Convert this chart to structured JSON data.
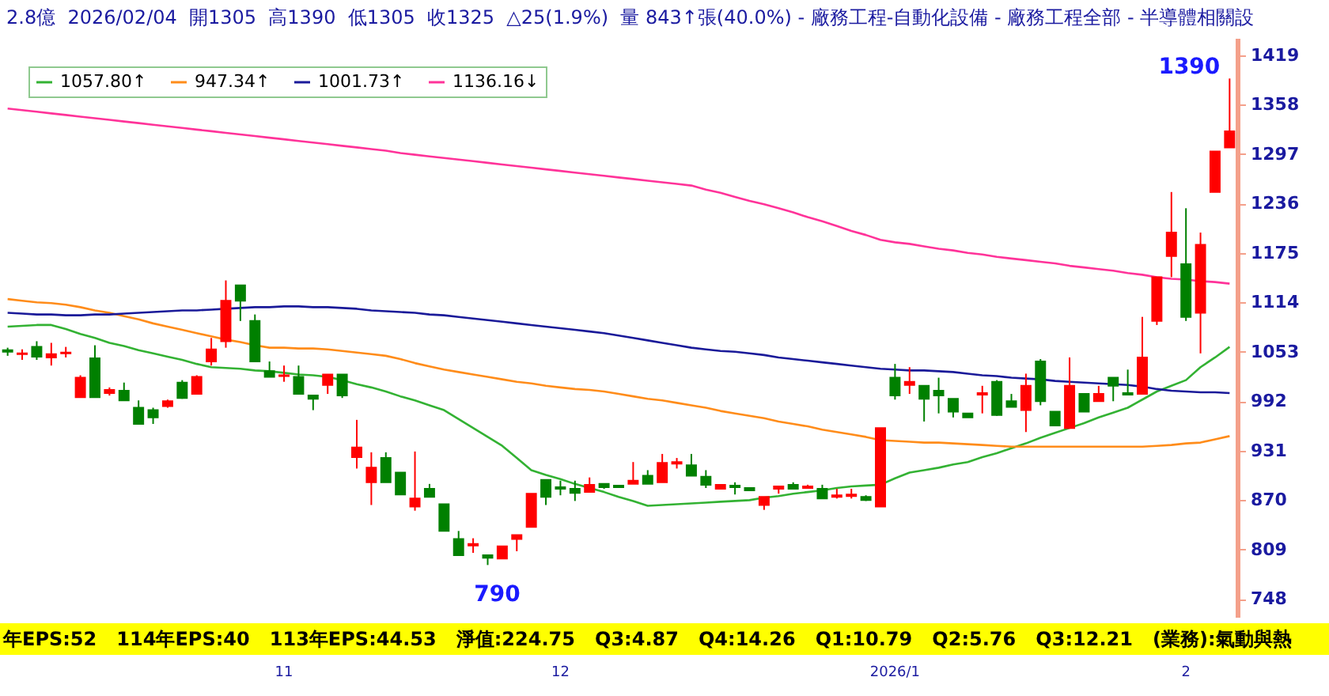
{
  "chart_data": {
    "type": "candlestick",
    "title": "2.8億  2026/02/04  開1305  高1390  低1305  收1325  △25(1.9%)  量 843↑張(40.0%) - 廠務工程-自動化設備 - 廠務工程全部 - 半導體相關設",
    "categories": [
      null,
      null,
      null,
      null,
      null,
      null,
      null,
      null,
      null,
      null,
      null,
      null,
      null,
      null,
      null,
      null,
      null,
      null,
      null,
      "11",
      null,
      null,
      null,
      null,
      null,
      null,
      null,
      null,
      null,
      null,
      null,
      null,
      null,
      null,
      null,
      null,
      null,
      null,
      "12",
      null,
      null,
      null,
      null,
      null,
      null,
      null,
      null,
      null,
      null,
      null,
      null,
      null,
      null,
      null,
      null,
      null,
      null,
      null,
      null,
      null,
      null,
      "2026/1",
      null,
      null,
      null,
      null,
      null,
      null,
      null,
      null,
      null,
      null,
      null,
      null,
      null,
      null,
      null,
      null,
      null,
      null,
      null,
      "2",
      null,
      null,
      null
    ],
    "ohlc": [
      [
        1055,
        1058,
        1048,
        1053
      ],
      [
        1050,
        1056,
        1043,
        1051
      ],
      [
        1059,
        1066,
        1043,
        1047
      ],
      [
        1046,
        1064,
        1036,
        1050
      ],
      [
        1051,
        1059,
        1046,
        1052
      ],
      [
        997,
        1024,
        997,
        1021
      ],
      [
        1045,
        1061,
        997,
        997
      ],
      [
        1002,
        1009,
        999,
        1006
      ],
      [
        1005,
        1015,
        993,
        993
      ],
      [
        984,
        993,
        964,
        964
      ],
      [
        981,
        984,
        964,
        972
      ],
      [
        986,
        994,
        984,
        992
      ],
      [
        1015,
        1018,
        995,
        996
      ],
      [
        1001,
        1024,
        1001,
        1022
      ],
      [
        1041,
        1070,
        1036,
        1056
      ],
      [
        1066,
        1141,
        1058,
        1116
      ],
      [
        1135,
        1135,
        1091,
        1116
      ],
      [
        1091,
        1099,
        1041,
        1041
      ],
      [
        1029,
        1041,
        1022,
        1022
      ],
      [
        1023,
        1036,
        1016,
        1024
      ],
      [
        1022,
        1036,
        1001,
        1001
      ],
      [
        999,
        999,
        981,
        995
      ],
      [
        1012,
        1025,
        1001,
        1025
      ],
      [
        1025,
        1025,
        996,
        999
      ],
      [
        923,
        969,
        909,
        935
      ],
      [
        892,
        929,
        864,
        910
      ],
      [
        922,
        929,
        892,
        892
      ],
      [
        904,
        904,
        877,
        877
      ],
      [
        862,
        930,
        857,
        872
      ],
      [
        884,
        890,
        874,
        874
      ],
      [
        865,
        865,
        832,
        832
      ],
      [
        822,
        832,
        802,
        802
      ],
      [
        814,
        823,
        805,
        816
      ],
      [
        802,
        803,
        790,
        799
      ],
      [
        798,
        813,
        798,
        813
      ],
      [
        822,
        827,
        807,
        827
      ],
      [
        837,
        878,
        837,
        878
      ],
      [
        895,
        895,
        864,
        874
      ],
      [
        886,
        894,
        876,
        884
      ],
      [
        884,
        894,
        869,
        879
      ],
      [
        880,
        898,
        880,
        889
      ],
      [
        890,
        890,
        884,
        886
      ],
      [
        888,
        888,
        886,
        886
      ],
      [
        890,
        917,
        890,
        894
      ],
      [
        900,
        907,
        890,
        890
      ],
      [
        892,
        927,
        892,
        916
      ],
      [
        915,
        922,
        909,
        917
      ],
      [
        913,
        927,
        900,
        900
      ],
      [
        899,
        907,
        885,
        889
      ],
      [
        884,
        889,
        884,
        889
      ],
      [
        888,
        892,
        877,
        886
      ],
      [
        885,
        885,
        882,
        882
      ],
      [
        864,
        874,
        858,
        874
      ],
      [
        884,
        887,
        878,
        887
      ],
      [
        889,
        892,
        884,
        884
      ],
      [
        885,
        889,
        884,
        887
      ],
      [
        884,
        889,
        872,
        872
      ],
      [
        874,
        884,
        872,
        876
      ],
      [
        875,
        884,
        872,
        877
      ],
      [
        874,
        876,
        869,
        870
      ],
      [
        862,
        959,
        862,
        959
      ],
      [
        1021,
        1038,
        994,
        999
      ],
      [
        1012,
        1034,
        1001,
        1016
      ],
      [
        1011,
        1011,
        967,
        995
      ],
      [
        1005,
        1021,
        977,
        999
      ],
      [
        995,
        995,
        972,
        979
      ],
      [
        977,
        977,
        972,
        972
      ],
      [
        1000,
        1011,
        977,
        1002
      ],
      [
        1016,
        1018,
        974,
        975
      ],
      [
        992,
        1001,
        985,
        985
      ],
      [
        981,
        1026,
        954,
        1011
      ],
      [
        1041,
        1044,
        987,
        992
      ],
      [
        979,
        979,
        962,
        962
      ],
      [
        959,
        1046,
        959,
        1011
      ],
      [
        1001,
        1001,
        979,
        979
      ],
      [
        992,
        1011,
        992,
        1001
      ],
      [
        1021,
        1021,
        992,
        1011
      ],
      [
        1002,
        1031,
        1000,
        1000
      ],
      [
        1001,
        1096,
        1001,
        1046
      ],
      [
        1091,
        1145,
        1086,
        1145
      ],
      [
        1171,
        1250,
        1145,
        1200
      ],
      [
        1161,
        1230,
        1091,
        1096
      ],
      [
        1101,
        1200,
        1051,
        1185
      ],
      [
        1250,
        1300,
        1250,
        1300
      ],
      [
        1305,
        1390,
        1305,
        1325
      ]
    ],
    "colors": [
      "#008000",
      "#ff0000",
      "#008000",
      "#ff0000",
      "#ff0000",
      "#ff0000",
      "#008000",
      "#ff0000",
      "#008000",
      "#008000",
      "#008000",
      "#ff0000",
      "#008000",
      "#ff0000",
      "#ff0000",
      "#ff0000",
      "#008000",
      "#008000",
      "#008000",
      "#ff0000",
      "#008000",
      "#008000",
      "#ff0000",
      "#008000",
      "#ff0000",
      "#ff0000",
      "#008000",
      "#008000",
      "#ff0000",
      "#008000",
      "#008000",
      "#008000",
      "#ff0000",
      "#008000",
      "#ff0000",
      "#ff0000",
      "#ff0000",
      "#008000",
      "#008000",
      "#008000",
      "#ff0000",
      "#008000",
      "#008000",
      "#ff0000",
      "#008000",
      "#ff0000",
      "#ff0000",
      "#008000",
      "#008000",
      "#ff0000",
      "#008000",
      "#008000",
      "#ff0000",
      "#ff0000",
      "#008000",
      "#ff0000",
      "#008000",
      "#ff0000",
      "#ff0000",
      "#008000",
      "#ff0000",
      "#008000",
      "#ff0000",
      "#008000",
      "#008000",
      "#008000",
      "#008000",
      "#ff0000",
      "#008000",
      "#008000",
      "#ff0000",
      "#008000",
      "#008000",
      "#ff0000",
      "#008000",
      "#ff0000",
      "#008000",
      "#008000",
      "#ff0000",
      "#ff0000",
      "#ff0000",
      "#008000",
      "#ff0000",
      "#ff0000",
      "#ff0000"
    ],
    "series": [
      {
        "type": "line",
        "name": "1057.80↑",
        "color": "#33b233",
        "values": [
          1084,
          1085,
          1086,
          1086,
          1081,
          1075,
          1070,
          1064,
          1060,
          1055,
          1051,
          1047,
          1043,
          1038,
          1034,
          1033,
          1032,
          1030,
          1029,
          1027,
          1025,
          1024,
          1022,
          1018,
          1013,
          1009,
          1004,
          998,
          993,
          987,
          981,
          970,
          959,
          948,
          937,
          922,
          907,
          901,
          896,
          890,
          885,
          880,
          874,
          869,
          863,
          864,
          865,
          866,
          867,
          868,
          869,
          870,
          873,
          875,
          878,
          880,
          882,
          885,
          887,
          888,
          889,
          897,
          904,
          907,
          910,
          914,
          917,
          923,
          928,
          934,
          940,
          947,
          953,
          959,
          965,
          972,
          978,
          984,
          994,
          1004,
          1011,
          1018,
          1034,
          1046,
          1059
        ]
      },
      {
        "type": "line",
        "name": "947.34↑",
        "color": "#ff8c1a",
        "values": [
          1118,
          1116,
          1114,
          1113,
          1111,
          1108,
          1104,
          1101,
          1097,
          1093,
          1088,
          1084,
          1080,
          1076,
          1072,
          1068,
          1065,
          1061,
          1058,
          1058,
          1057,
          1057,
          1056,
          1054,
          1052,
          1050,
          1048,
          1044,
          1039,
          1035,
          1031,
          1028,
          1025,
          1022,
          1019,
          1016,
          1014,
          1011,
          1009,
          1007,
          1006,
          1004,
          1001,
          998,
          995,
          993,
          990,
          987,
          984,
          980,
          977,
          974,
          971,
          967,
          964,
          961,
          957,
          954,
          951,
          948,
          944,
          943,
          942,
          941,
          941,
          940,
          939,
          938,
          937,
          936,
          936,
          936,
          936,
          936,
          936,
          936,
          936,
          936,
          936,
          937,
          938,
          940,
          941,
          945,
          949
        ]
      },
      {
        "type": "line",
        "name": "1001.73↑",
        "color": "#1a1a99",
        "values": [
          1101,
          1100,
          1099,
          1099,
          1098,
          1098,
          1099,
          1099,
          1100,
          1101,
          1102,
          1103,
          1104,
          1104,
          1105,
          1106,
          1107,
          1108,
          1108,
          1109,
          1109,
          1108,
          1108,
          1107,
          1106,
          1104,
          1103,
          1102,
          1101,
          1099,
          1098,
          1096,
          1094,
          1092,
          1090,
          1088,
          1086,
          1084,
          1082,
          1080,
          1078,
          1076,
          1073,
          1070,
          1067,
          1064,
          1061,
          1058,
          1056,
          1054,
          1053,
          1051,
          1049,
          1046,
          1044,
          1042,
          1040,
          1038,
          1036,
          1034,
          1032,
          1031,
          1030,
          1030,
          1029,
          1028,
          1026,
          1024,
          1023,
          1021,
          1020,
          1019,
          1017,
          1016,
          1015,
          1014,
          1013,
          1012,
          1010,
          1007,
          1005,
          1004,
          1003,
          1003,
          1002
        ]
      },
      {
        "type": "line",
        "name": "1136.16↓",
        "color": "#ff3399",
        "values": [
          1353,
          1351,
          1349,
          1347,
          1345,
          1343,
          1341,
          1339,
          1337,
          1335,
          1333,
          1331,
          1329,
          1327,
          1325,
          1323,
          1321,
          1319,
          1317,
          1315,
          1313,
          1311,
          1309,
          1307,
          1305,
          1303,
          1301,
          1298,
          1296,
          1294,
          1292,
          1290,
          1288,
          1286,
          1284,
          1282,
          1280,
          1278,
          1276,
          1274,
          1272,
          1270,
          1268,
          1266,
          1264,
          1262,
          1260,
          1258,
          1253,
          1249,
          1244,
          1239,
          1235,
          1230,
          1225,
          1219,
          1214,
          1208,
          1202,
          1197,
          1191,
          1188,
          1186,
          1183,
          1180,
          1178,
          1175,
          1173,
          1170,
          1168,
          1166,
          1164,
          1162,
          1159,
          1157,
          1155,
          1153,
          1150,
          1148,
          1145,
          1143,
          1142,
          1140,
          1139,
          1137
        ]
      }
    ],
    "ylim": [
      726,
      1440
    ],
    "yticks": [
      748,
      809,
      870,
      931,
      992,
      1053,
      1114,
      1175,
      1236,
      1297,
      1358,
      1419
    ],
    "legend": "top left",
    "annotations": [
      "1390",
      "790",
      "年EPS:52   114年EPS:40   113年EPS:44.53   淨值:224.75   Q3:4.87   Q4:14.26   Q1:10.79   Q2:5.76   Q3:12.21   (業務):氣動與熱"
    ]
  }
}
